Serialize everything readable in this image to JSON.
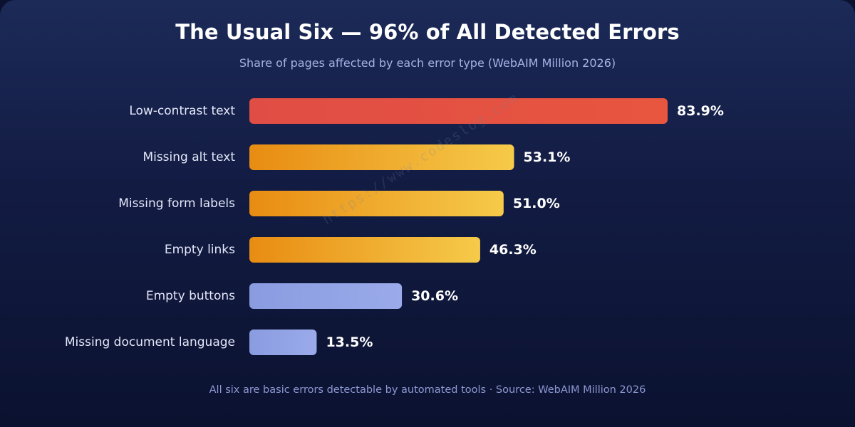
{
  "header": {
    "title": "The Usual Six — 96% of All Detected Errors",
    "subtitle": "Share of pages affected by each error type (WebAIM Million 2026)"
  },
  "footer": {
    "note": "All six are basic errors detectable by automated tools · Source: WebAIM Million 2026"
  },
  "watermark": {
    "text": "https://www.codeslog.com"
  },
  "colors": {
    "red_start": "#e04d45",
    "red_end": "#e8563f",
    "orange_start": "#e88c12",
    "orange_end": "#f6ca4a",
    "blue_start": "#8a9ce0",
    "blue_end": "#9aaaea",
    "label_text": "#e4e8fa",
    "value_text": "#ffffff"
  },
  "chart_data": {
    "type": "bar",
    "orientation": "horizontal",
    "title": "The Usual Six — 96% of All Detected Errors",
    "subtitle": "Share of pages affected by each error type (WebAIM Million 2026)",
    "categories": [
      "Low-contrast text",
      "Missing alt text",
      "Missing form labels",
      "Empty links",
      "Empty buttons",
      "Missing document language"
    ],
    "values": [
      83.9,
      53.1,
      51.0,
      46.3,
      30.6,
      13.5
    ],
    "value_labels": [
      "83.9%",
      "53.1%",
      "51.0%",
      "46.3%",
      "30.6%",
      "13.5%"
    ],
    "bar_colors": [
      "red",
      "orange",
      "orange",
      "orange",
      "blue",
      "blue"
    ],
    "unit": "%",
    "xlim": [
      0,
      100
    ],
    "grid": false,
    "legend": "none"
  }
}
